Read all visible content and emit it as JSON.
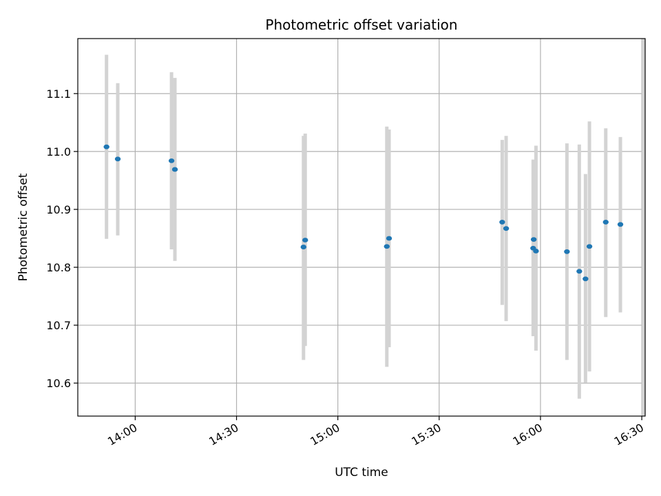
{
  "chart_data": {
    "type": "scatter",
    "title": "Photometric offset variation",
    "xlabel": "UTC time",
    "ylabel": "Photometric offset",
    "x_unit": "UTC time (HH:MM)",
    "xlim": [
      "13:43",
      "16:31"
    ],
    "ylim": [
      10.543,
      11.195
    ],
    "x_ticks": [
      "14:00",
      "14:30",
      "15:00",
      "15:30",
      "16:00",
      "16:30"
    ],
    "y_ticks": [
      10.6,
      10.7,
      10.8,
      10.9,
      11.0,
      11.1
    ],
    "y_tick_labels": [
      "10.6",
      "10.7",
      "10.8",
      "10.9",
      "11.0",
      "11.1"
    ],
    "grid": true,
    "legend": "none",
    "colors": {
      "point": "#1f77b4",
      "errorbar": "#d3d3d3",
      "grid": "#b0b0b0"
    },
    "errorbars": [
      {
        "time": "13:51:30",
        "low": 10.849,
        "high": 11.167
      },
      {
        "time": "13:54:50",
        "low": 10.855,
        "high": 11.118
      },
      {
        "time": "14:10:45",
        "low": 10.831,
        "high": 11.137
      },
      {
        "time": "14:11:45",
        "low": 10.811,
        "high": 11.127
      },
      {
        "time": "14:49:50",
        "low": 10.64,
        "high": 11.027
      },
      {
        "time": "14:50:20",
        "low": 10.664,
        "high": 11.031
      },
      {
        "time": "15:14:30",
        "low": 10.628,
        "high": 11.043
      },
      {
        "time": "15:15:10",
        "low": 10.662,
        "high": 11.038
      },
      {
        "time": "15:48:40",
        "low": 10.735,
        "high": 11.02
      },
      {
        "time": "15:49:50",
        "low": 10.707,
        "high": 11.027
      },
      {
        "time": "15:57:50",
        "low": 10.681,
        "high": 10.986
      },
      {
        "time": "15:58:40",
        "low": 10.656,
        "high": 11.01
      },
      {
        "time": "16:07:50",
        "low": 10.64,
        "high": 11.014
      },
      {
        "time": "16:11:30",
        "low": 10.573,
        "high": 11.012
      },
      {
        "time": "16:13:20",
        "low": 10.601,
        "high": 10.961
      },
      {
        "time": "16:14:30",
        "low": 10.62,
        "high": 11.052
      },
      {
        "time": "16:19:20",
        "low": 10.714,
        "high": 11.04
      },
      {
        "time": "16:23:40",
        "low": 10.722,
        "high": 11.025
      },
      {
        "time": "16:30:30",
        "low": 10.543,
        "high": 11.195
      }
    ],
    "points": [
      {
        "time": "13:51:30",
        "offset": 11.008
      },
      {
        "time": "13:54:50",
        "offset": 10.987
      },
      {
        "time": "14:10:45",
        "offset": 10.984
      },
      {
        "time": "14:11:45",
        "offset": 10.969
      },
      {
        "time": "14:49:50",
        "offset": 10.835
      },
      {
        "time": "14:50:20",
        "offset": 10.847
      },
      {
        "time": "15:14:30",
        "offset": 10.836
      },
      {
        "time": "15:15:10",
        "offset": 10.85
      },
      {
        "time": "15:48:40",
        "offset": 10.878
      },
      {
        "time": "15:49:50",
        "offset": 10.867
      },
      {
        "time": "15:57:50",
        "offset": 10.833
      },
      {
        "time": "15:58:00",
        "offset": 10.848
      },
      {
        "time": "15:58:40",
        "offset": 10.828
      },
      {
        "time": "16:07:50",
        "offset": 10.827
      },
      {
        "time": "16:11:30",
        "offset": 10.793
      },
      {
        "time": "16:13:20",
        "offset": 10.78
      },
      {
        "time": "16:14:30",
        "offset": 10.836
      },
      {
        "time": "16:19:20",
        "offset": 10.878
      },
      {
        "time": "16:23:40",
        "offset": 10.874
      }
    ]
  }
}
